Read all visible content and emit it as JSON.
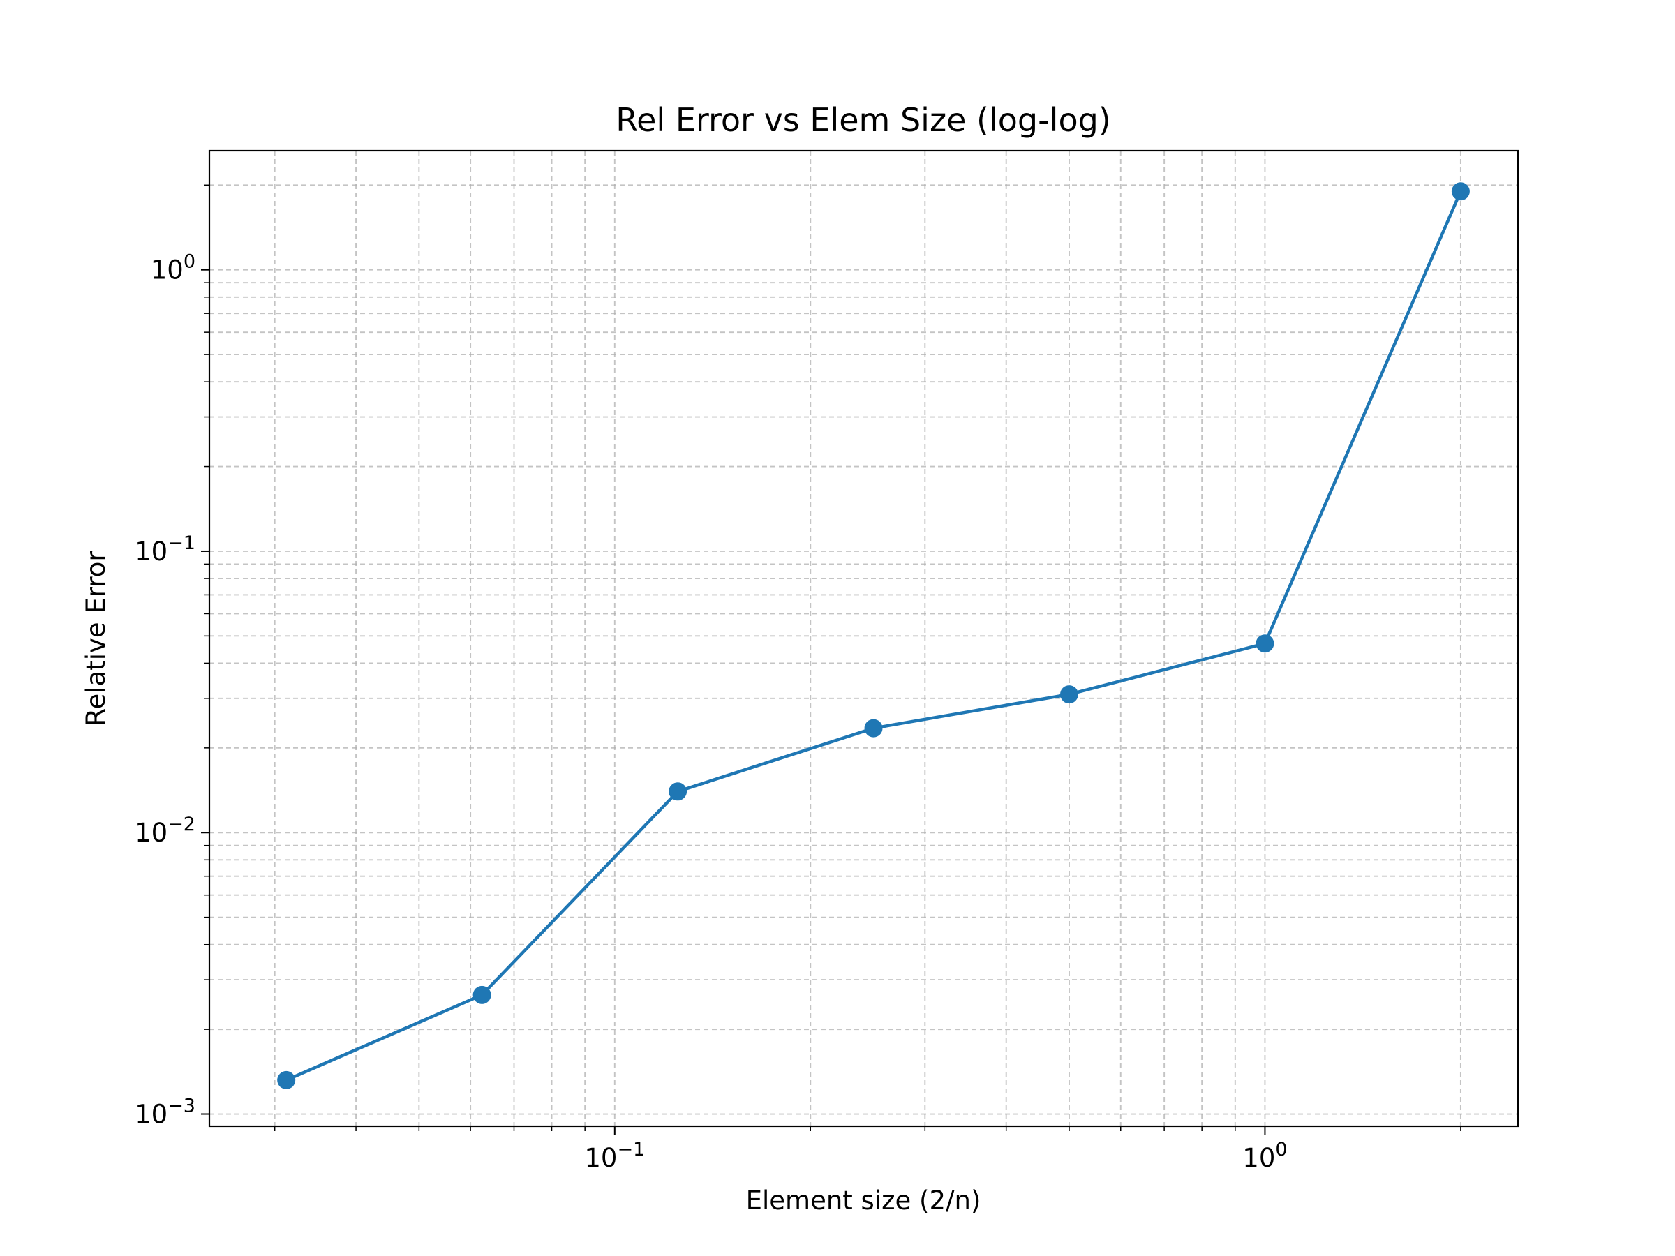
{
  "chart_data": {
    "type": "line",
    "title": "Rel Error vs Elem Size (log-log)",
    "xlabel": "Element size (2/n)",
    "ylabel": "Relative Error",
    "xscale": "log",
    "yscale": "log",
    "xlim": [
      0.0238,
      2.45
    ],
    "ylim": [
      0.000905,
      2.65
    ],
    "x_ticks": [
      {
        "value": 0.1,
        "base": "10",
        "exp": "−1"
      },
      {
        "value": 1,
        "base": "10",
        "exp": "0"
      }
    ],
    "y_ticks": [
      {
        "value": 0.001,
        "base": "10",
        "exp": "−3"
      },
      {
        "value": 0.01,
        "base": "10",
        "exp": "−2"
      },
      {
        "value": 0.1,
        "base": "10",
        "exp": "−1"
      },
      {
        "value": 1,
        "base": "10",
        "exp": "0"
      }
    ],
    "grid": "both (major and minor), dashed",
    "color": "#1f77b4",
    "x": [
      0.03125,
      0.0625,
      0.125,
      0.25,
      0.5,
      1,
      2
    ],
    "y": [
      0.00132,
      0.00265,
      0.014,
      0.0235,
      0.031,
      0.047,
      1.9
    ]
  }
}
